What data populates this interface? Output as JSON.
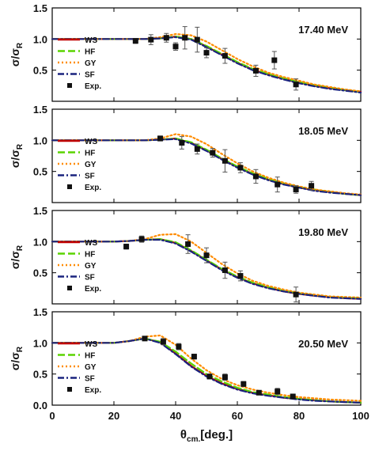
{
  "chart_data": [
    {
      "type": "line",
      "energy_label": "17.40 MeV",
      "ylabel": "σ/σR",
      "xlim": [
        0,
        100
      ],
      "ylim": [
        0,
        1.5
      ],
      "yticks": [
        "0.5",
        "1.0",
        "1.5"
      ],
      "legend": [
        "WS",
        "HF",
        "GY",
        "SF",
        "Exp."
      ],
      "series": [
        {
          "name": "WS",
          "color": "#c00000",
          "dash": "solid",
          "x": [
            0,
            10,
            20,
            25,
            30,
            35,
            40,
            45,
            50,
            55,
            60,
            65,
            70,
            75,
            80,
            85,
            90,
            95,
            100
          ],
          "y": [
            1.0,
            1.0,
            1.0,
            1.0,
            1.0,
            1.01,
            1.04,
            1.0,
            0.88,
            0.75,
            0.62,
            0.51,
            0.43,
            0.36,
            0.3,
            0.25,
            0.21,
            0.18,
            0.15
          ]
        },
        {
          "name": "HF",
          "color": "#5ad400",
          "dash": "long",
          "x": [
            0,
            10,
            20,
            25,
            30,
            35,
            40,
            45,
            50,
            55,
            60,
            65,
            70,
            75,
            80,
            85,
            90,
            95,
            100
          ],
          "y": [
            1.0,
            1.0,
            1.0,
            1.0,
            1.0,
            1.01,
            1.04,
            1.0,
            0.89,
            0.76,
            0.63,
            0.52,
            0.44,
            0.37,
            0.31,
            0.26,
            0.22,
            0.18,
            0.15
          ]
        },
        {
          "name": "GY",
          "color": "#ff8c00",
          "dash": "dot",
          "x": [
            0,
            10,
            20,
            25,
            30,
            35,
            40,
            45,
            50,
            55,
            60,
            65,
            70,
            75,
            80,
            85,
            90,
            95,
            100
          ],
          "y": [
            1.0,
            1.0,
            1.0,
            1.0,
            1.0,
            1.03,
            1.08,
            1.06,
            0.96,
            0.82,
            0.68,
            0.56,
            0.46,
            0.39,
            0.33,
            0.27,
            0.23,
            0.19,
            0.16
          ]
        },
        {
          "name": "SF",
          "color": "#1a237e",
          "dash": "dashdot",
          "x": [
            0,
            10,
            20,
            25,
            30,
            35,
            40,
            45,
            50,
            55,
            60,
            65,
            70,
            75,
            80,
            85,
            90,
            95,
            100
          ],
          "y": [
            1.0,
            1.0,
            1.0,
            1.0,
            1.0,
            1.01,
            1.03,
            0.99,
            0.87,
            0.74,
            0.61,
            0.5,
            0.42,
            0.35,
            0.29,
            0.24,
            0.2,
            0.17,
            0.14
          ]
        }
      ],
      "exp": {
        "x": [
          27,
          32,
          37,
          40,
          43,
          47,
          50,
          56,
          66,
          72,
          79
        ],
        "y": [
          0.97,
          0.99,
          1.02,
          0.88,
          1.02,
          0.99,
          0.78,
          0.73,
          0.49,
          0.66,
          0.27
        ],
        "err": [
          0.04,
          0.08,
          0.07,
          0.06,
          0.18,
          0.2,
          0.08,
          0.12,
          0.09,
          0.14,
          0.09
        ]
      }
    },
    {
      "type": "line",
      "energy_label": "18.05 MeV",
      "ylabel": "σ/σR",
      "xlim": [
        0,
        100
      ],
      "ylim": [
        0,
        1.5
      ],
      "yticks": [
        "0.5",
        "1.0",
        "1.5"
      ],
      "legend": [
        "WS",
        "HF",
        "GY",
        "SF",
        "Exp."
      ],
      "series": [
        {
          "name": "WS",
          "color": "#c00000",
          "dash": "solid",
          "x": [
            0,
            10,
            20,
            25,
            30,
            35,
            40,
            45,
            50,
            55,
            60,
            65,
            70,
            75,
            80,
            85,
            90,
            95,
            100
          ],
          "y": [
            1.0,
            1.0,
            1.0,
            1.0,
            1.0,
            1.01,
            1.03,
            0.96,
            0.84,
            0.7,
            0.57,
            0.46,
            0.37,
            0.3,
            0.24,
            0.2,
            0.17,
            0.14,
            0.12
          ]
        },
        {
          "name": "HF",
          "color": "#5ad400",
          "dash": "long",
          "x": [
            0,
            10,
            20,
            25,
            30,
            35,
            40,
            45,
            50,
            55,
            60,
            65,
            70,
            75,
            80,
            85,
            90,
            95,
            100
          ],
          "y": [
            1.0,
            1.0,
            1.0,
            1.0,
            1.0,
            1.01,
            1.03,
            0.97,
            0.85,
            0.71,
            0.58,
            0.47,
            0.38,
            0.31,
            0.25,
            0.21,
            0.17,
            0.14,
            0.12
          ]
        },
        {
          "name": "GY",
          "color": "#ff8c00",
          "dash": "dot",
          "x": [
            0,
            10,
            20,
            25,
            30,
            35,
            40,
            45,
            50,
            55,
            60,
            65,
            70,
            75,
            80,
            85,
            90,
            95,
            100
          ],
          "y": [
            1.0,
            1.0,
            1.0,
            1.0,
            1.0,
            1.03,
            1.1,
            1.06,
            0.94,
            0.78,
            0.63,
            0.5,
            0.4,
            0.32,
            0.26,
            0.21,
            0.18,
            0.15,
            0.13
          ]
        },
        {
          "name": "SF",
          "color": "#1a237e",
          "dash": "dashdot",
          "x": [
            0,
            10,
            20,
            25,
            30,
            35,
            40,
            45,
            50,
            55,
            60,
            65,
            70,
            75,
            80,
            85,
            90,
            95,
            100
          ],
          "y": [
            1.0,
            1.0,
            1.0,
            1.0,
            1.0,
            1.01,
            1.02,
            0.95,
            0.83,
            0.69,
            0.56,
            0.45,
            0.36,
            0.29,
            0.24,
            0.19,
            0.16,
            0.14,
            0.12
          ]
        }
      ],
      "exp": {
        "x": [
          35,
          42,
          47,
          52,
          56,
          61,
          66,
          73,
          79,
          84
        ],
        "y": [
          1.03,
          0.96,
          0.86,
          0.8,
          0.67,
          0.56,
          0.42,
          0.29,
          0.21,
          0.27
        ],
        "err": [
          0.04,
          0.1,
          0.08,
          0.07,
          0.18,
          0.08,
          0.11,
          0.12,
          0.06,
          0.07
        ]
      }
    },
    {
      "type": "line",
      "energy_label": "19.80 MeV",
      "ylabel": "σ/σR",
      "xlim": [
        0,
        100
      ],
      "ylim": [
        0,
        1.5
      ],
      "yticks": [
        "0.5",
        "1.0",
        "1.5"
      ],
      "legend": [
        "WS",
        "HF",
        "GY",
        "SF",
        "Exp."
      ],
      "series": [
        {
          "name": "WS",
          "color": "#c00000",
          "dash": "solid",
          "x": [
            0,
            10,
            20,
            25,
            30,
            35,
            40,
            45,
            50,
            55,
            60,
            65,
            70,
            75,
            80,
            85,
            90,
            95,
            100
          ],
          "y": [
            1.0,
            1.0,
            1.0,
            1.01,
            1.03,
            1.04,
            0.98,
            0.85,
            0.7,
            0.55,
            0.43,
            0.33,
            0.26,
            0.2,
            0.16,
            0.13,
            0.11,
            0.09,
            0.08
          ]
        },
        {
          "name": "HF",
          "color": "#5ad400",
          "dash": "long",
          "x": [
            0,
            10,
            20,
            25,
            30,
            35,
            40,
            45,
            50,
            55,
            60,
            65,
            70,
            75,
            80,
            85,
            90,
            95,
            100
          ],
          "y": [
            1.0,
            1.0,
            1.0,
            1.01,
            1.03,
            1.04,
            0.99,
            0.86,
            0.71,
            0.56,
            0.44,
            0.34,
            0.27,
            0.21,
            0.17,
            0.14,
            0.11,
            0.1,
            0.09
          ]
        },
        {
          "name": "GY",
          "color": "#ff8c00",
          "dash": "dot",
          "x": [
            0,
            10,
            20,
            25,
            30,
            35,
            40,
            45,
            50,
            55,
            60,
            65,
            70,
            75,
            80,
            85,
            90,
            95,
            100
          ],
          "y": [
            1.0,
            1.0,
            1.0,
            1.01,
            1.04,
            1.11,
            1.12,
            1.0,
            0.82,
            0.64,
            0.49,
            0.37,
            0.29,
            0.23,
            0.18,
            0.15,
            0.12,
            0.11,
            0.1
          ]
        },
        {
          "name": "SF",
          "color": "#1a237e",
          "dash": "dashdot",
          "x": [
            0,
            10,
            20,
            25,
            30,
            35,
            40,
            45,
            50,
            55,
            60,
            65,
            70,
            75,
            80,
            85,
            90,
            95,
            100
          ],
          "y": [
            1.0,
            1.0,
            1.0,
            1.01,
            1.03,
            1.03,
            0.97,
            0.84,
            0.69,
            0.54,
            0.42,
            0.32,
            0.25,
            0.2,
            0.16,
            0.13,
            0.1,
            0.09,
            0.08
          ]
        }
      ],
      "exp": {
        "x": [
          24,
          29,
          44,
          50,
          56,
          61,
          79
        ],
        "y": [
          0.92,
          1.04,
          0.96,
          0.78,
          0.54,
          0.45,
          0.15
        ],
        "err": [
          0.04,
          0.05,
          0.15,
          0.12,
          0.13,
          0.08,
          0.12
        ]
      }
    },
    {
      "type": "line",
      "energy_label": "20.50 MeV",
      "ylabel": "σ/σR",
      "xlabel": "θcm.[deg.]",
      "xlim": [
        0,
        100
      ],
      "ylim": [
        0,
        1.5
      ],
      "yticks": [
        "0.0",
        "0.5",
        "1.0",
        "1.5"
      ],
      "xticks": [
        "0",
        "20",
        "40",
        "60",
        "80",
        "100"
      ],
      "legend": [
        "WS",
        "HF",
        "GY",
        "SF",
        "Exp."
      ],
      "series": [
        {
          "name": "WS",
          "color": "#c00000",
          "dash": "solid",
          "x": [
            0,
            10,
            20,
            25,
            30,
            35,
            40,
            45,
            50,
            55,
            60,
            65,
            70,
            75,
            80,
            85,
            90,
            95,
            100
          ],
          "y": [
            1.0,
            1.0,
            1.0,
            1.03,
            1.07,
            1.01,
            0.83,
            0.63,
            0.47,
            0.35,
            0.26,
            0.2,
            0.16,
            0.12,
            0.1,
            0.08,
            0.06,
            0.05,
            0.04
          ]
        },
        {
          "name": "HF",
          "color": "#5ad400",
          "dash": "long",
          "x": [
            0,
            10,
            20,
            25,
            30,
            35,
            40,
            45,
            50,
            55,
            60,
            65,
            70,
            75,
            80,
            85,
            90,
            95,
            100
          ],
          "y": [
            1.0,
            1.0,
            1.0,
            1.03,
            1.07,
            1.02,
            0.86,
            0.67,
            0.5,
            0.38,
            0.28,
            0.21,
            0.17,
            0.13,
            0.1,
            0.08,
            0.06,
            0.05,
            0.04
          ]
        },
        {
          "name": "GY",
          "color": "#ff8c00",
          "dash": "dot",
          "x": [
            0,
            10,
            20,
            25,
            30,
            35,
            40,
            45,
            50,
            55,
            60,
            65,
            70,
            75,
            80,
            85,
            90,
            95,
            100
          ],
          "y": [
            1.0,
            1.0,
            1.0,
            1.03,
            1.1,
            1.12,
            0.97,
            0.75,
            0.56,
            0.42,
            0.32,
            0.25,
            0.2,
            0.16,
            0.13,
            0.11,
            0.09,
            0.08,
            0.07
          ]
        },
        {
          "name": "SF",
          "color": "#1a237e",
          "dash": "dashdot",
          "x": [
            0,
            10,
            20,
            25,
            30,
            35,
            40,
            45,
            50,
            55,
            60,
            65,
            70,
            75,
            80,
            85,
            90,
            95,
            100
          ],
          "y": [
            1.0,
            1.0,
            1.0,
            1.03,
            1.07,
            1.0,
            0.82,
            0.62,
            0.46,
            0.34,
            0.25,
            0.19,
            0.15,
            0.12,
            0.09,
            0.07,
            0.06,
            0.05,
            0.04
          ]
        }
      ],
      "exp": {
        "x": [
          30,
          36,
          41,
          46,
          51,
          56,
          62,
          67,
          73,
          78
        ],
        "y": [
          1.07,
          1.02,
          0.94,
          0.78,
          0.46,
          0.45,
          0.34,
          0.2,
          0.22,
          0.14
        ],
        "err": [
          0.03,
          0.05,
          0.05,
          0.04,
          0.04,
          0.05,
          0.04,
          0.03,
          0.05,
          0.03
        ]
      }
    }
  ]
}
